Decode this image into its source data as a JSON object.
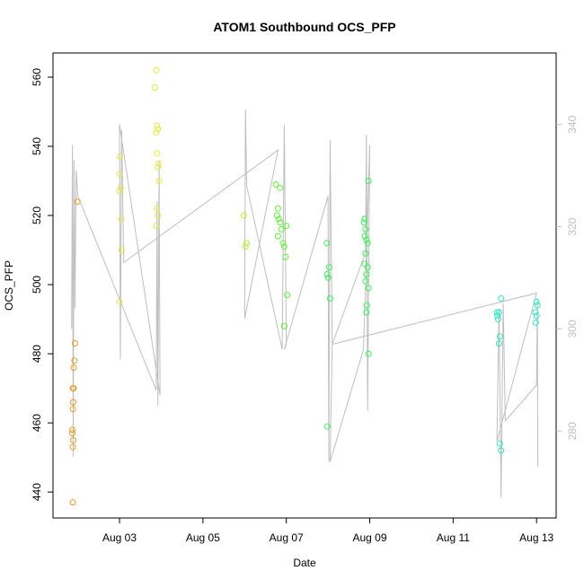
{
  "chart_data": {
    "type": "scatter",
    "title": "ATOM1 Southbound OCS_PFP",
    "x_label": "Date",
    "y_label": "OCS_PFP",
    "xlim": [
      1.405,
      13.47
    ],
    "ylim": [
      432.5,
      567
    ],
    "y2lim": [
      263,
      354
    ],
    "xticks": [
      {
        "value": 3,
        "label": "Aug 03"
      },
      {
        "value": 5,
        "label": "Aug 05"
      },
      {
        "value": 7,
        "label": "Aug 07"
      },
      {
        "value": 9,
        "label": "Aug 09"
      },
      {
        "value": 11,
        "label": "Aug 11"
      },
      {
        "value": 13,
        "label": "Aug 13"
      }
    ],
    "yticks": [
      440,
      460,
      480,
      500,
      520,
      540,
      560
    ],
    "y2ticks": [
      280,
      300,
      320,
      340
    ],
    "y2_color": "#bebebe",
    "series": [
      {
        "color": "#e69a2e",
        "x": [
          1.88,
          1.88,
          1.89,
          1.87,
          1.87,
          1.88,
          1.89,
          1.88,
          1.9,
          1.9,
          1.92,
          1.93,
          1.99
        ],
        "values": [
          437,
          453,
          455,
          457,
          458,
          464,
          466,
          470,
          470,
          476,
          478,
          483,
          524
        ]
      },
      {
        "color": "#e6e64a",
        "x": [
          3.0,
          3.05,
          3.04,
          3.0,
          3.03,
          3.0,
          3.01,
          3.88,
          3.92,
          3.9,
          3.95,
          3.92,
          3.94,
          3.9,
          3.88,
          3.92,
          3.9,
          3.85,
          3.88
        ],
        "values": [
          495,
          510,
          519,
          527,
          528,
          532,
          537,
          517,
          520,
          522,
          530,
          534,
          535,
          538,
          544,
          545,
          546,
          557,
          562
        ]
      },
      {
        "color": "#b4ee30",
        "x": [
          6.02,
          6.05,
          5.98
        ],
        "values": [
          511,
          512,
          520
        ]
      },
      {
        "color": "#64ee3c",
        "x": [
          6.75,
          6.85,
          6.8,
          6.78,
          6.82,
          6.85,
          6.88,
          6.8,
          6.92,
          6.95,
          6.98,
          7.02,
          6.95,
          7.0
        ],
        "values": [
          529,
          528,
          522,
          520,
          519,
          518,
          516,
          514,
          512,
          511,
          508,
          497,
          488,
          517
        ]
      },
      {
        "color": "#3cee5a",
        "x": [
          7.98,
          8.05,
          8.0,
          7.98,
          8.03,
          7.97,
          8.88,
          8.86,
          8.9,
          8.88,
          8.92,
          8.95,
          8.9,
          8.88,
          8.92,
          8.9,
          8.97,
          8.93,
          8.92,
          8.97,
          8.95,
          8.97
        ],
        "values": [
          459,
          496,
          502,
          503,
          505,
          512,
          519,
          518,
          516,
          514,
          513,
          512,
          509,
          506,
          503,
          501,
          499,
          494,
          492,
          480,
          505,
          530
        ]
      },
      {
        "color": "#2ee8c0",
        "x": [
          12.15,
          12.12,
          12.1,
          12.12,
          12.08,
          12.06,
          12.1,
          12.05,
          12.15,
          12.98,
          13.0,
          12.97,
          13.02,
          13.0
        ],
        "values": [
          452,
          454,
          483,
          485,
          490,
          491,
          492,
          492,
          496,
          489,
          491,
          492,
          494,
          495
        ]
      }
    ],
    "line": {
      "axis": "y2",
      "color": "#bebebe",
      "x": [
        1.85,
        1.87,
        1.89,
        1.91,
        1.93,
        1.96,
        2.0,
        3.88,
        3.9,
        3.92,
        3.95,
        3.97,
        3.0,
        3.02,
        3.05,
        3.1,
        6.8,
        6.0,
        6.02,
        6.05,
        6.9,
        6.95,
        7.0,
        6.95,
        8.0,
        8.02,
        8.05,
        8.1,
        8.9,
        8.92,
        8.95,
        9.0,
        8.85,
        8.05,
        8.1,
        13.0,
        12.05,
        12.1,
        12.15,
        12.2,
        12.25,
        13.0,
        13.02,
        13.03
      ],
      "values": [
        300,
        336,
        275,
        333,
        304,
        331,
        326,
        288,
        325,
        285,
        333,
        287,
        340,
        294,
        339,
        313,
        335,
        302,
        343,
        328,
        296,
        340,
        297,
        296,
        326,
        274,
        337,
        297,
        315,
        338,
        284,
        336,
        296,
        274,
        297,
        307,
        278,
        304,
        267,
        305,
        282,
        289,
        306,
        273
      ]
    }
  }
}
